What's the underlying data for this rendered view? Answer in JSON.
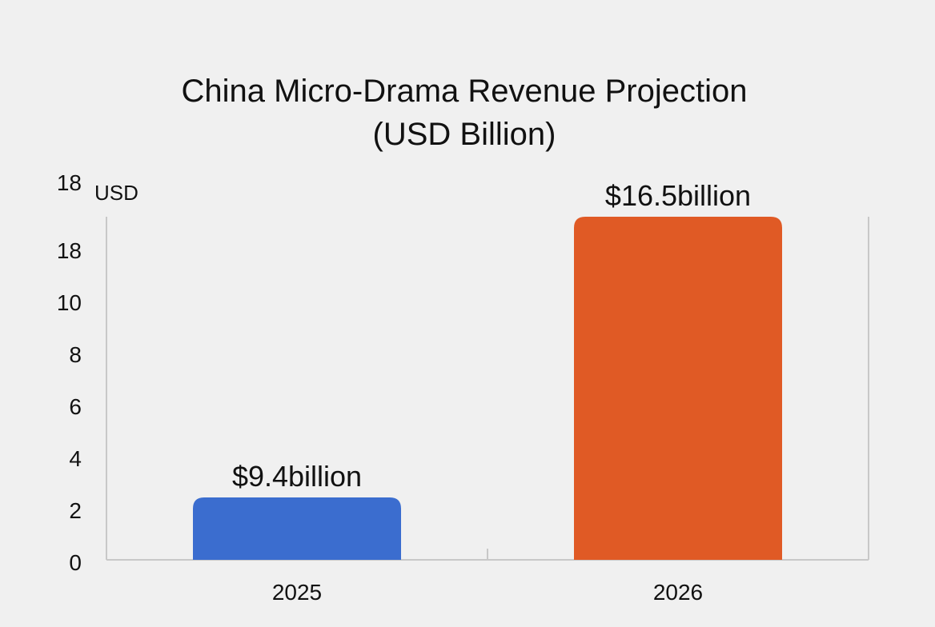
{
  "chart_data": {
    "type": "bar",
    "title": "China Micro-Drama Revenue Projection",
    "subtitle": "(USD Billion)",
    "ylabel": "USD",
    "xlabel": "",
    "y_tick_labels": [
      "0",
      "2",
      "4",
      "6",
      "8",
      "10",
      "18",
      "18"
    ],
    "categories": [
      "2025",
      "2026"
    ],
    "values": [
      9.4,
      16.5
    ],
    "data_labels": [
      "$9.4billion",
      "$16.5billion"
    ],
    "bar_levels_shown": [
      2.4,
      13.2
    ],
    "colors": [
      "#3b6dcf",
      "#e05a25"
    ],
    "grid": false,
    "legend": "none"
  }
}
